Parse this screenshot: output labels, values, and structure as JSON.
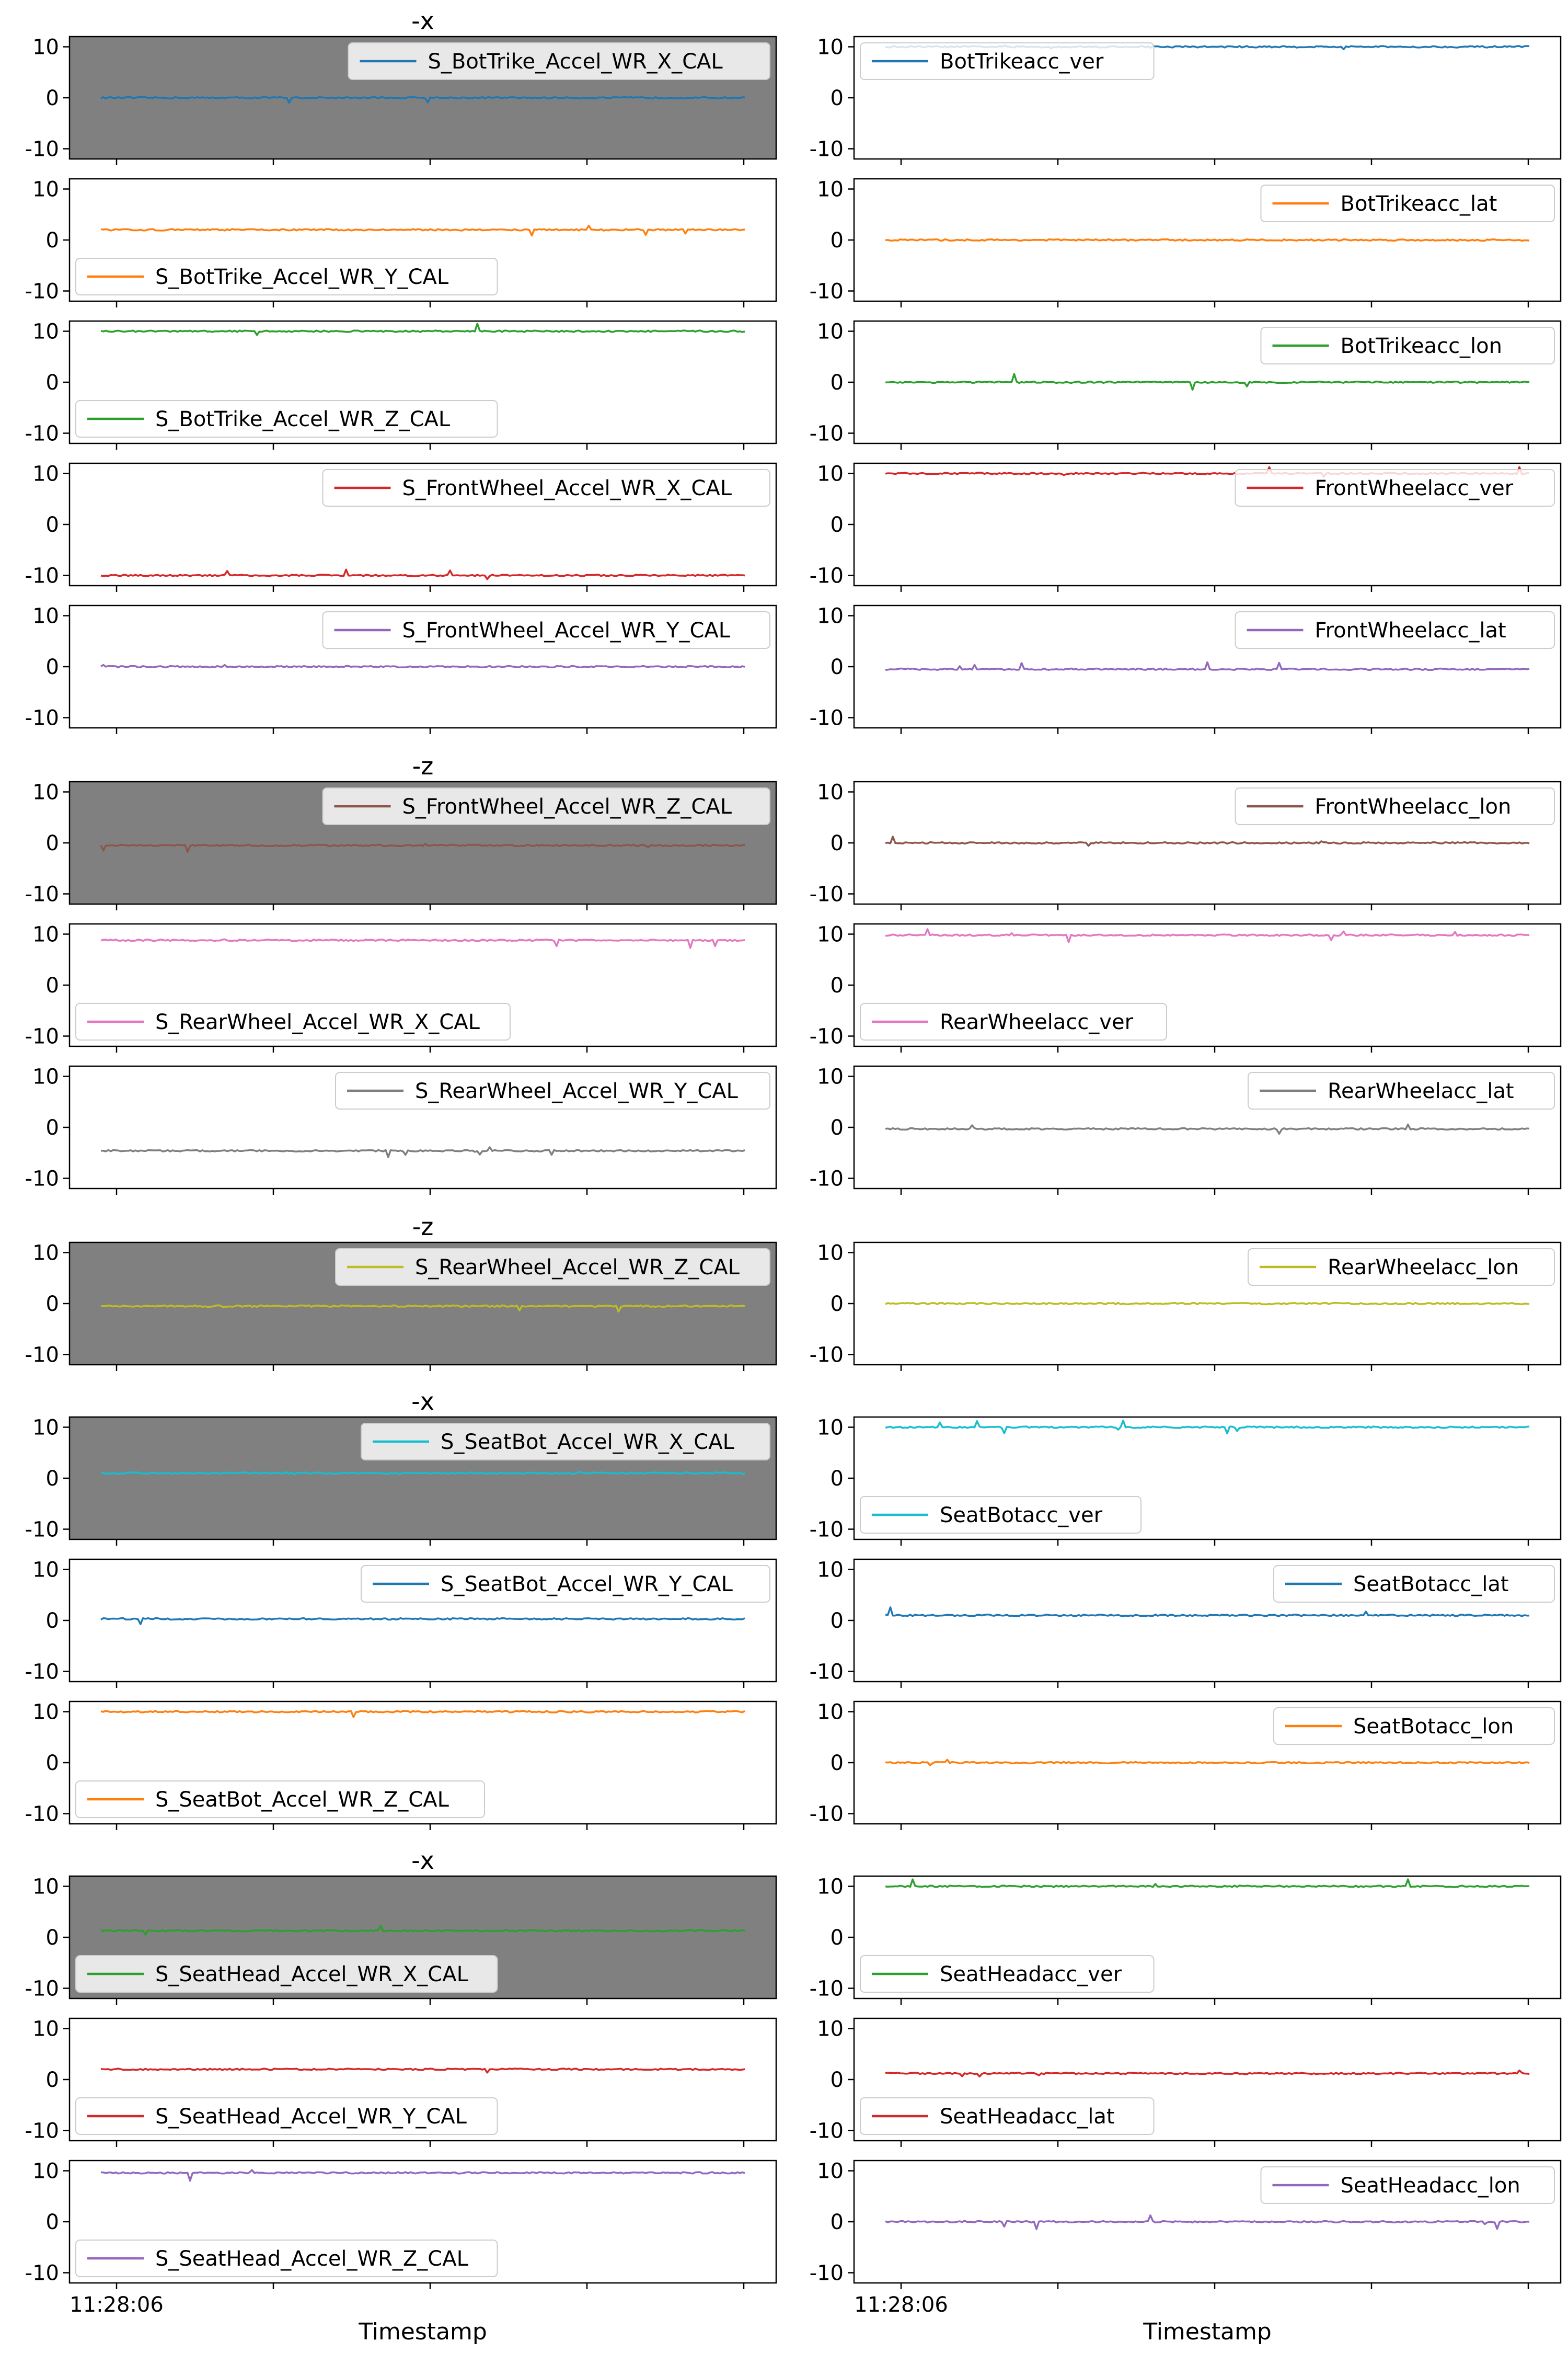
{
  "chart_data": {
    "type": "line",
    "grid": false,
    "xlabel": "Timestamp",
    "x_tick_label": "11:28:06",
    "y_range": [
      -12,
      12
    ],
    "y_ticks": [
      10,
      0,
      -10
    ],
    "rows": [
      {
        "left": {
          "title": "-x",
          "highlighted": true,
          "name": "S_BotTrike_Accel_WR_X_CAL",
          "value": 0,
          "color": "#1f77b4",
          "legend": "upper right"
        },
        "right": {
          "title": "",
          "highlighted": false,
          "name": "BotTrikeacc_ver",
          "value": 10,
          "color": "#1f77b4",
          "legend": "upper left"
        }
      },
      {
        "left": {
          "title": "",
          "highlighted": false,
          "name": "S_BotTrike_Accel_WR_Y_CAL",
          "value": 2,
          "color": "#ff7f0e",
          "legend": "lower left"
        },
        "right": {
          "title": "",
          "highlighted": false,
          "name": "BotTrikeacc_lat",
          "value": 0,
          "color": "#ff7f0e",
          "legend": "upper right"
        }
      },
      {
        "left": {
          "title": "",
          "highlighted": false,
          "name": "S_BotTrike_Accel_WR_Z_CAL",
          "value": 10,
          "color": "#2ca02c",
          "legend": "lower left"
        },
        "right": {
          "title": "",
          "highlighted": false,
          "name": "BotTrikeacc_lon",
          "value": 0,
          "color": "#2ca02c",
          "legend": "upper right"
        }
      },
      {
        "left": {
          "title": "",
          "highlighted": false,
          "name": "S_FrontWheel_Accel_WR_X_CAL",
          "value": -10,
          "color": "#d62728",
          "legend": "upper right"
        },
        "right": {
          "title": "",
          "highlighted": false,
          "name": "FrontWheelacc_ver",
          "value": 10,
          "color": "#d62728",
          "legend": "upper right"
        }
      },
      {
        "left": {
          "title": "",
          "highlighted": false,
          "name": "S_FrontWheel_Accel_WR_Y_CAL",
          "value": 0,
          "color": "#9467bd",
          "legend": "upper right"
        },
        "right": {
          "title": "",
          "highlighted": false,
          "name": "FrontWheelacc_lat",
          "value": -0.5,
          "color": "#9467bd",
          "legend": "upper right"
        }
      },
      {
        "left": {
          "title": "-z",
          "highlighted": true,
          "name": "S_FrontWheel_Accel_WR_Z_CAL",
          "value": -0.5,
          "color": "#8c564b",
          "legend": "upper right"
        },
        "right": {
          "title": "",
          "highlighted": false,
          "name": "FrontWheelacc_lon",
          "value": 0,
          "color": "#8c564b",
          "legend": "upper right"
        }
      },
      {
        "left": {
          "title": "",
          "highlighted": false,
          "name": "S_RearWheel_Accel_WR_X_CAL",
          "value": 8.8,
          "color": "#e377c2",
          "legend": "lower left"
        },
        "right": {
          "title": "",
          "highlighted": false,
          "name": "RearWheelacc_ver",
          "value": 9.8,
          "color": "#e377c2",
          "legend": "lower left"
        }
      },
      {
        "left": {
          "title": "",
          "highlighted": false,
          "name": "S_RearWheel_Accel_WR_Y_CAL",
          "value": -4.6,
          "color": "#7f7f7f",
          "legend": "upper right"
        },
        "right": {
          "title": "",
          "highlighted": false,
          "name": "RearWheelacc_lat",
          "value": -0.3,
          "color": "#7f7f7f",
          "legend": "upper right"
        }
      },
      {
        "left": {
          "title": "-z",
          "highlighted": true,
          "name": "S_RearWheel_Accel_WR_Z_CAL",
          "value": -0.5,
          "color": "#bcbd22",
          "legend": "upper right"
        },
        "right": {
          "title": "",
          "highlighted": false,
          "name": "RearWheelacc_lon",
          "value": 0,
          "color": "#bcbd22",
          "legend": "upper right"
        }
      },
      {
        "left": {
          "title": "-x",
          "highlighted": true,
          "name": "S_SeatBot_Accel_WR_X_CAL",
          "value": 1,
          "color": "#17becf",
          "legend": "upper right"
        },
        "right": {
          "title": "",
          "highlighted": false,
          "name": "SeatBotacc_ver",
          "value": 10,
          "color": "#17becf",
          "legend": "lower left"
        }
      },
      {
        "left": {
          "title": "",
          "highlighted": false,
          "name": "S_SeatBot_Accel_WR_Y_CAL",
          "value": 0.3,
          "color": "#1f77b4",
          "legend": "upper right"
        },
        "right": {
          "title": "",
          "highlighted": false,
          "name": "SeatBotacc_lat",
          "value": 1,
          "color": "#1f77b4",
          "legend": "upper right"
        }
      },
      {
        "left": {
          "title": "",
          "highlighted": false,
          "name": "S_SeatBot_Accel_WR_Z_CAL",
          "value": 10,
          "color": "#ff7f0e",
          "legend": "lower left"
        },
        "right": {
          "title": "",
          "highlighted": false,
          "name": "SeatBotacc_lon",
          "value": 0,
          "color": "#ff7f0e",
          "legend": "upper right"
        }
      },
      {
        "left": {
          "title": "-x",
          "highlighted": true,
          "name": "S_SeatHead_Accel_WR_X_CAL",
          "value": 1.3,
          "color": "#2ca02c",
          "legend": "lower left"
        },
        "right": {
          "title": "",
          "highlighted": false,
          "name": "SeatHeadacc_ver",
          "value": 10,
          "color": "#2ca02c",
          "legend": "lower left"
        }
      },
      {
        "left": {
          "title": "",
          "highlighted": false,
          "name": "S_SeatHead_Accel_WR_Y_CAL",
          "value": 2,
          "color": "#d62728",
          "legend": "lower left"
        },
        "right": {
          "title": "",
          "highlighted": false,
          "name": "SeatHeadacc_lat",
          "value": 1.2,
          "color": "#d62728",
          "legend": "lower left"
        }
      },
      {
        "left": {
          "title": "",
          "highlighted": false,
          "name": "S_SeatHead_Accel_WR_Z_CAL",
          "value": 9.6,
          "color": "#9467bd",
          "legend": "lower left"
        },
        "right": {
          "title": "",
          "highlighted": false,
          "name": "SeatHeadacc_lon",
          "value": 0,
          "color": "#9467bd",
          "legend": "upper right"
        }
      }
    ]
  }
}
